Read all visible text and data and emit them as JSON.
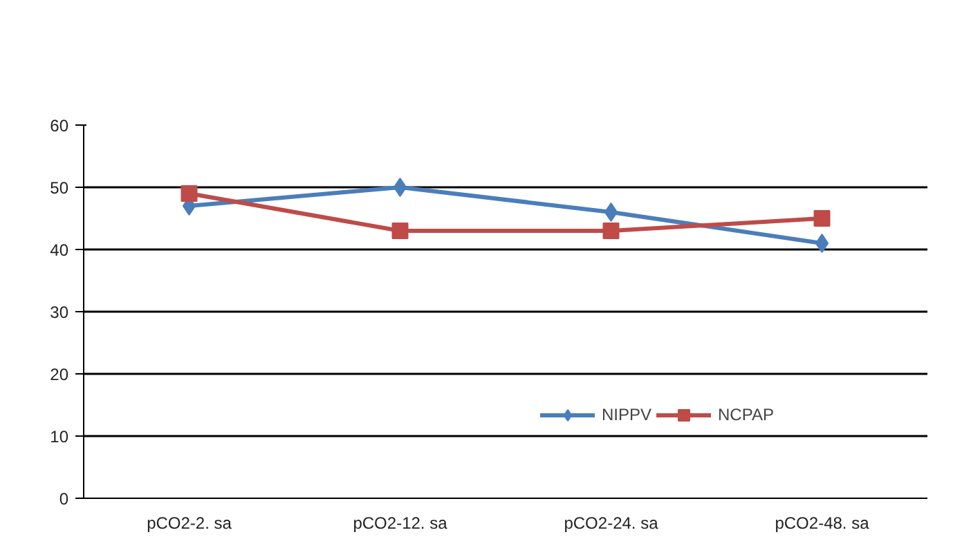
{
  "chart_data": {
    "type": "line",
    "categories": [
      "pCO2-2. sa",
      "pCO2-12. sa",
      "pCO2-24. sa",
      "pCO2-48. sa"
    ],
    "series": [
      {
        "name": "NIPPV",
        "color": "#4a7ebb",
        "marker": "diamond",
        "values": [
          47,
          50,
          46,
          41
        ]
      },
      {
        "name": "NCPAP",
        "color": "#be4b48",
        "marker": "square",
        "values": [
          49,
          43,
          43,
          45
        ]
      }
    ],
    "ylim": [
      0,
      60
    ],
    "yticks": [
      0,
      10,
      20,
      30,
      40,
      50,
      60
    ],
    "grid": "y",
    "legend": "bottom right",
    "line_style": "solid"
  }
}
